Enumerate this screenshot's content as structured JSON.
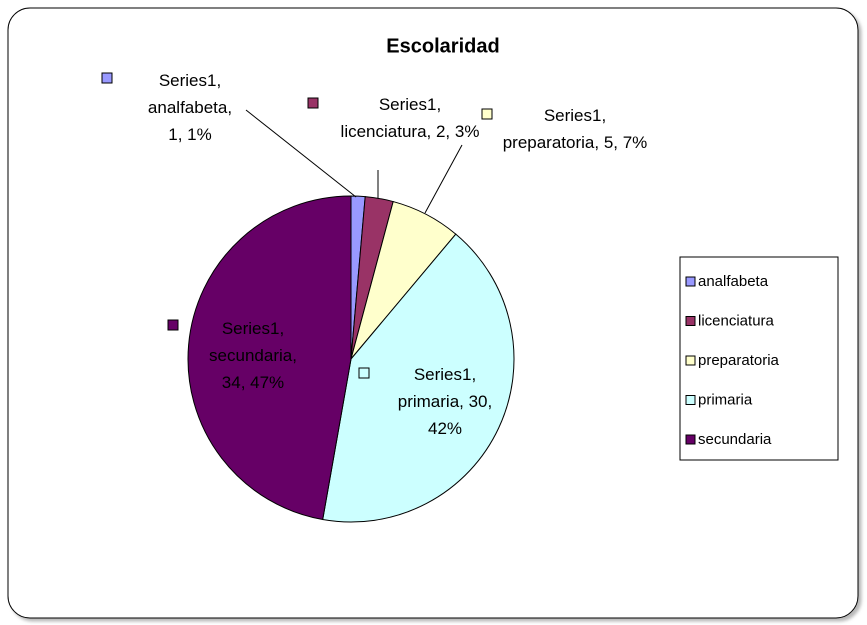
{
  "chart_data": {
    "type": "pie",
    "title": "Escolaridad",
    "categories": [
      "analfabeta",
      "licenciatura",
      "preparatoria",
      "primaria",
      "secundaria"
    ],
    "colors": [
      "#9999ff",
      "#993366",
      "#ffffcc",
      "#ccffff",
      "#660066"
    ],
    "series": [
      {
        "name": "Series1",
        "values": [
          1,
          2,
          5,
          30,
          34
        ],
        "value_labels": [
          "Series1, analfabeta, 1, 1%",
          "Series1, licenciatura, 2, 3%",
          "Series1, preparatoria, 5, 7%",
          "Series1, primaria, 30, 42%",
          "Series1, secundaria, 34, 47%"
        ]
      }
    ],
    "legend": "right"
  }
}
